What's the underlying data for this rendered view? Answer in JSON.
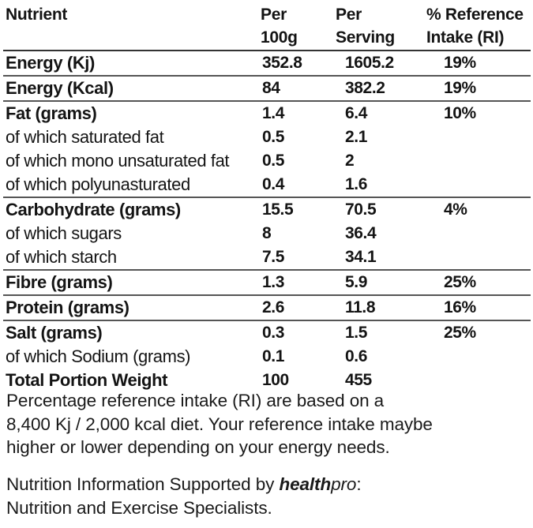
{
  "headers": {
    "nutrient": "Nutrient",
    "per100g": [
      "Per",
      "100g"
    ],
    "perServing": [
      "Per",
      "Serving"
    ],
    "ri": [
      "% Reference",
      "Intake (RI)"
    ]
  },
  "rows": [
    {
      "name": "Energy (Kj)",
      "p100": "352.8",
      "pserv": "1605.2",
      "ri": "19%",
      "bold": true,
      "sep": true
    },
    {
      "name": "Energy (Kcal)",
      "p100": "84",
      "pserv": "382.2",
      "ri": "19%",
      "bold": true,
      "sep": true
    },
    {
      "name": "Fat (grams)",
      "p100": "1.4",
      "pserv": "6.4",
      "ri": "10%",
      "bold": true,
      "sep": true
    },
    {
      "name": "of which saturated fat",
      "p100": "0.5",
      "pserv": "2.1",
      "ri": "",
      "bold": false,
      "sep": false
    },
    {
      "name": "of which mono unsaturated fat",
      "p100": "0.5",
      "pserv": "2",
      "ri": "",
      "bold": false,
      "sep": false
    },
    {
      "name": "of which polyunasturated",
      "p100": "0.4",
      "pserv": "1.6",
      "ri": "",
      "bold": false,
      "sep": false
    },
    {
      "name": "Carbohydrate (grams)",
      "p100": "15.5",
      "pserv": "70.5",
      "ri": "4%",
      "bold": true,
      "sep": true
    },
    {
      "name": "of which sugars",
      "p100": "8",
      "pserv": "36.4",
      "ri": "",
      "bold": false,
      "sep": false
    },
    {
      "name": "of which starch",
      "p100": "7.5",
      "pserv": "34.1",
      "ri": "",
      "bold": false,
      "sep": false
    },
    {
      "name": "Fibre (grams)",
      "p100": "1.3",
      "pserv": "5.9",
      "ri": "25%",
      "bold": true,
      "sep": true
    },
    {
      "name": "Protein (grams)",
      "p100": "2.6",
      "pserv": "11.8",
      "ri": "16%",
      "bold": true,
      "sep": true
    },
    {
      "name": "Salt (grams)",
      "p100": "0.3",
      "pserv": "1.5",
      "ri": "25%",
      "bold": true,
      "sep": true
    },
    {
      "name": "of which Sodium (grams)",
      "p100": "0.1",
      "pserv": "0.6",
      "ri": "",
      "bold": false,
      "sep": false
    },
    {
      "name": "Total Portion Weight",
      "p100": "100",
      "pserv": "455",
      "ri": "",
      "bold": true,
      "sep": false
    }
  ],
  "notes": {
    "ri_line1": "Percentage reference intake (RI) are based on a",
    "ri_line2": "8,400 Kj / 2,000 kcal diet. Your reference intake maybe",
    "ri_line3": "higher or lower depending on your energy needs.",
    "support_prefix": "Nutrition Information Supported by ",
    "brand_bold": "health",
    "brand_italic": "pro",
    "support_suffix": ":",
    "support_line2": "Nutrition and Exercise Specialists."
  }
}
